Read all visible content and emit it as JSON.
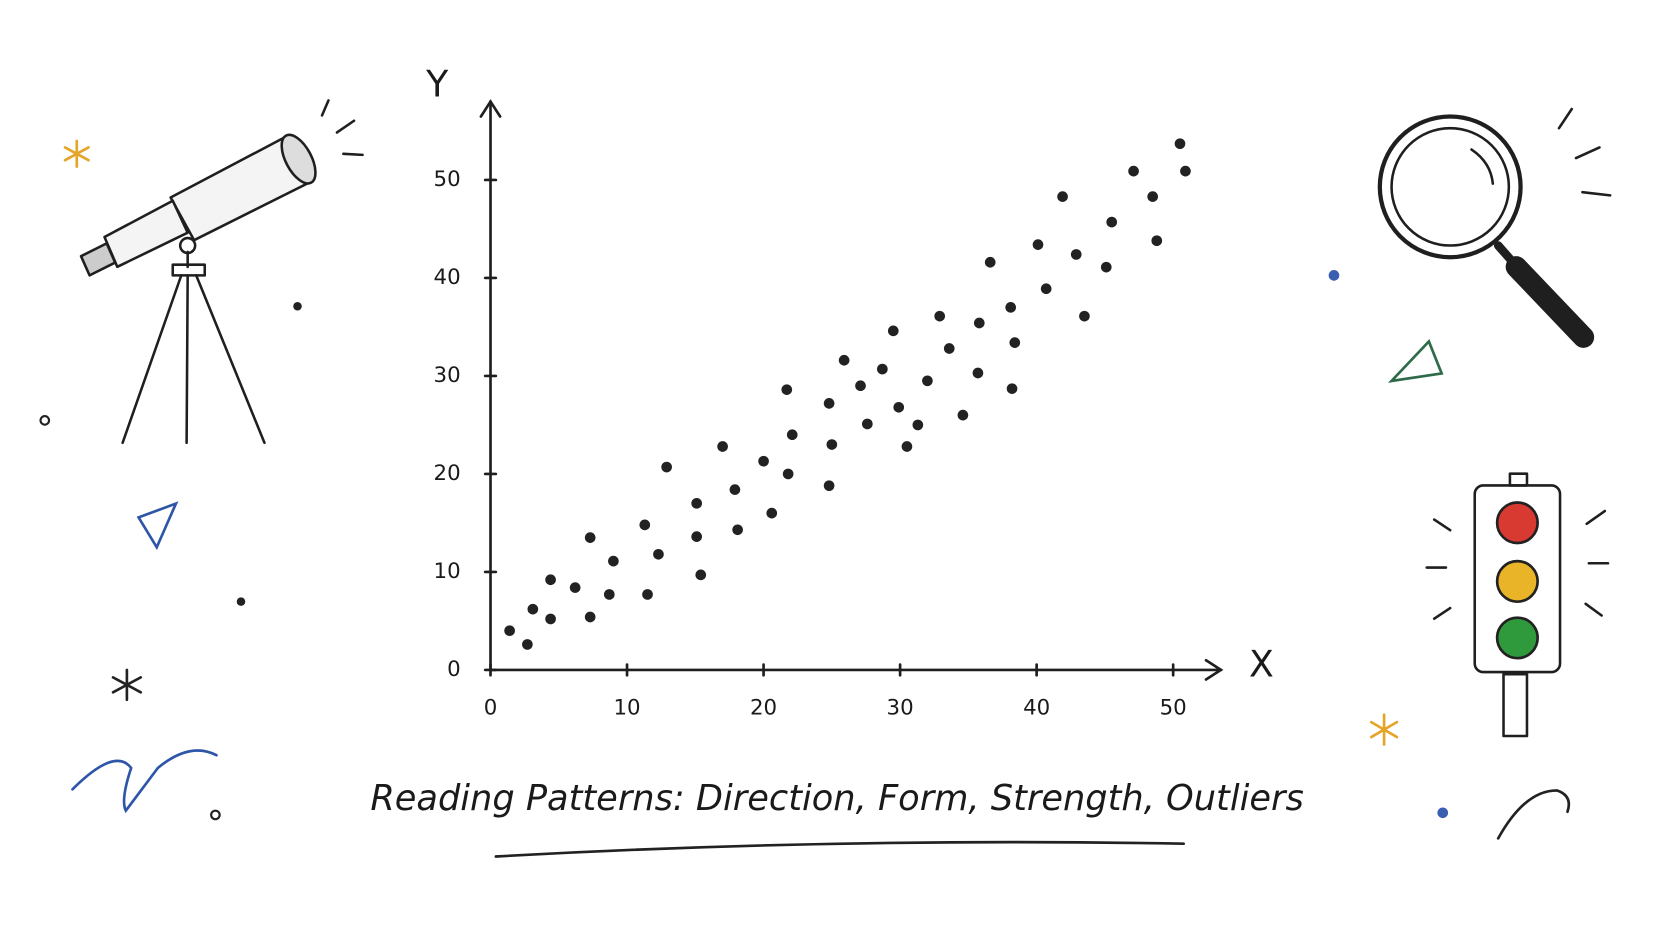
{
  "chart_data": {
    "type": "scatter",
    "title": "Reading Patterns: Direction, Form, Strength, Outliers",
    "x_label": "X",
    "y_label": "Y",
    "x": [
      1.4,
      2.7,
      3.1,
      4.4,
      4.4,
      6.2,
      7.3,
      7.3,
      9.0,
      8.7,
      11.3,
      11.5,
      12.3,
      12.9,
      15.1,
      15.1,
      15.4,
      17.0,
      17.9,
      18.1,
      20.0,
      20.6,
      21.7,
      21.8,
      22.1,
      24.8,
      24.8,
      25.0,
      25.9,
      27.1,
      27.6,
      28.7,
      29.5,
      29.9,
      30.5,
      31.3,
      32.0,
      32.9,
      33.6,
      34.6,
      35.8,
      35.7,
      36.6,
      38.1,
      38.4,
      38.2,
      40.1,
      40.7,
      41.9,
      42.9,
      43.5,
      45.1,
      45.5,
      47.1,
      48.5,
      48.8,
      50.5,
      50.9
    ],
    "values": [
      4.0,
      2.6,
      6.2,
      9.2,
      5.2,
      8.4,
      13.5,
      5.4,
      11.1,
      7.7,
      14.8,
      7.7,
      11.8,
      20.7,
      17.0,
      13.6,
      9.7,
      22.8,
      18.4,
      14.3,
      21.3,
      16.0,
      28.6,
      20.0,
      24.0,
      27.2,
      18.8,
      23.0,
      31.6,
      29.0,
      25.1,
      30.7,
      34.6,
      26.8,
      22.8,
      25.0,
      29.5,
      36.1,
      32.8,
      26.0,
      35.4,
      30.3,
      41.6,
      37.0,
      33.4,
      28.7,
      43.4,
      38.9,
      48.3,
      42.4,
      36.1,
      41.1,
      45.7,
      50.9,
      48.3,
      43.8,
      53.7,
      50.9
    ],
    "color": "#222222",
    "xlim": [
      0,
      53.5
    ],
    "ylim": [
      0,
      58
    ],
    "xticks": [
      0,
      10,
      20,
      30,
      40,
      50
    ],
    "yticks": [
      0,
      10,
      20,
      30,
      40,
      50
    ],
    "grid": false
  }
}
